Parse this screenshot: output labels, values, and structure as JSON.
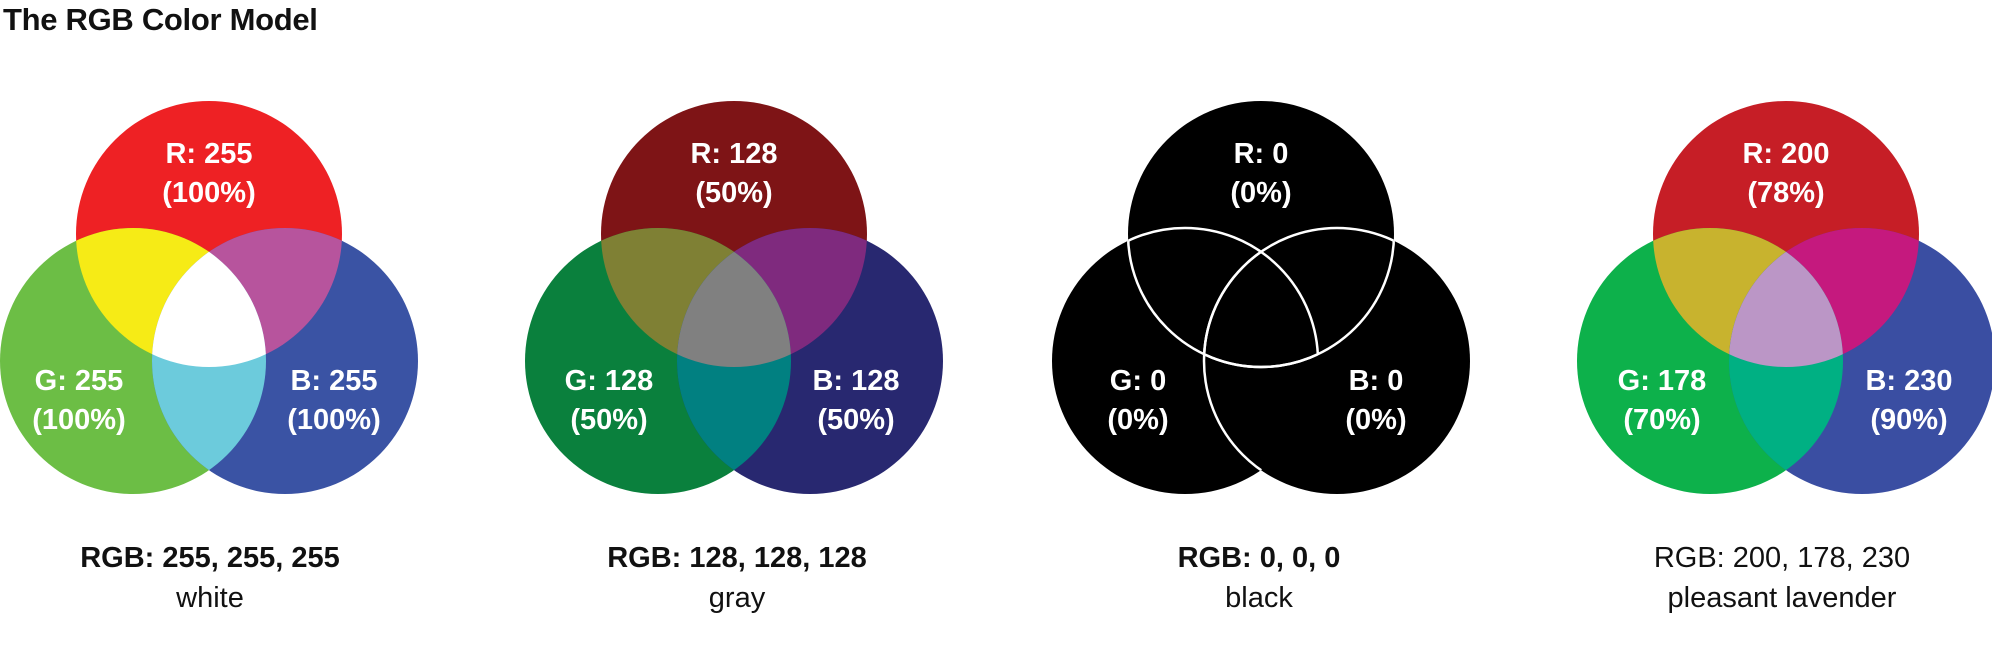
{
  "title": "The RGB Color Model",
  "diagrams": [
    {
      "colors": {
        "r": "#ee2124",
        "g": "#6cbe45",
        "b": "#3a53a4",
        "rg": "#f6eb16",
        "rb": "#b7549d",
        "gb": "#6ccbdc",
        "rgb": "#ffffff"
      },
      "r_label": "R: 255",
      "r_pct": "(100%)",
      "g_label": "G: 255",
      "g_pct": "(100%)",
      "b_label": "B: 255",
      "b_pct": "(100%)",
      "caption_rgb": "RGB: 255, 255, 255",
      "caption_name": "white",
      "caption_bold": true
    },
    {
      "colors": {
        "r": "#7e1416",
        "g": "#0a803d",
        "b": "#282870",
        "rg": "#7f8034",
        "rb": "#7f2a7e",
        "gb": "#018081",
        "rgb": "#808080"
      },
      "r_label": "R: 128",
      "r_pct": "(50%)",
      "g_label": "G: 128",
      "g_pct": "(50%)",
      "b_label": "B: 128",
      "b_pct": "(50%)",
      "caption_rgb": "RGB: 128, 128, 128",
      "caption_name": "gray",
      "caption_bold": true
    },
    {
      "colors": {
        "r": "#000000",
        "g": "#000000",
        "b": "#000000",
        "rg": "#000000",
        "rb": "#000000",
        "gb": "#000000",
        "rgb": "#000000"
      },
      "outline": "#ffffff",
      "r_label": "R: 0",
      "r_pct": "(0%)",
      "g_label": "G: 0",
      "g_pct": "(0%)",
      "b_label": "B: 0",
      "b_pct": "(0%)",
      "caption_rgb": "RGB: 0, 0, 0",
      "caption_name": "black",
      "caption_bold": true
    },
    {
      "colors": {
        "r": "#c61e26",
        "g": "#0db14b",
        "b": "#3a4ea2",
        "rg": "#c8b32e",
        "rb": "#c5197e",
        "gb": "#00b083",
        "rgb": "#bb96c6"
      },
      "r_label": "R: 200",
      "r_pct": "(78%)",
      "g_label": "G: 178",
      "g_pct": "(70%)",
      "b_label": "B: 230",
      "b_pct": "(90%)",
      "caption_rgb": "RGB: 200, 178, 230",
      "caption_name": "pleasant lavender",
      "caption_bold": false
    }
  ]
}
